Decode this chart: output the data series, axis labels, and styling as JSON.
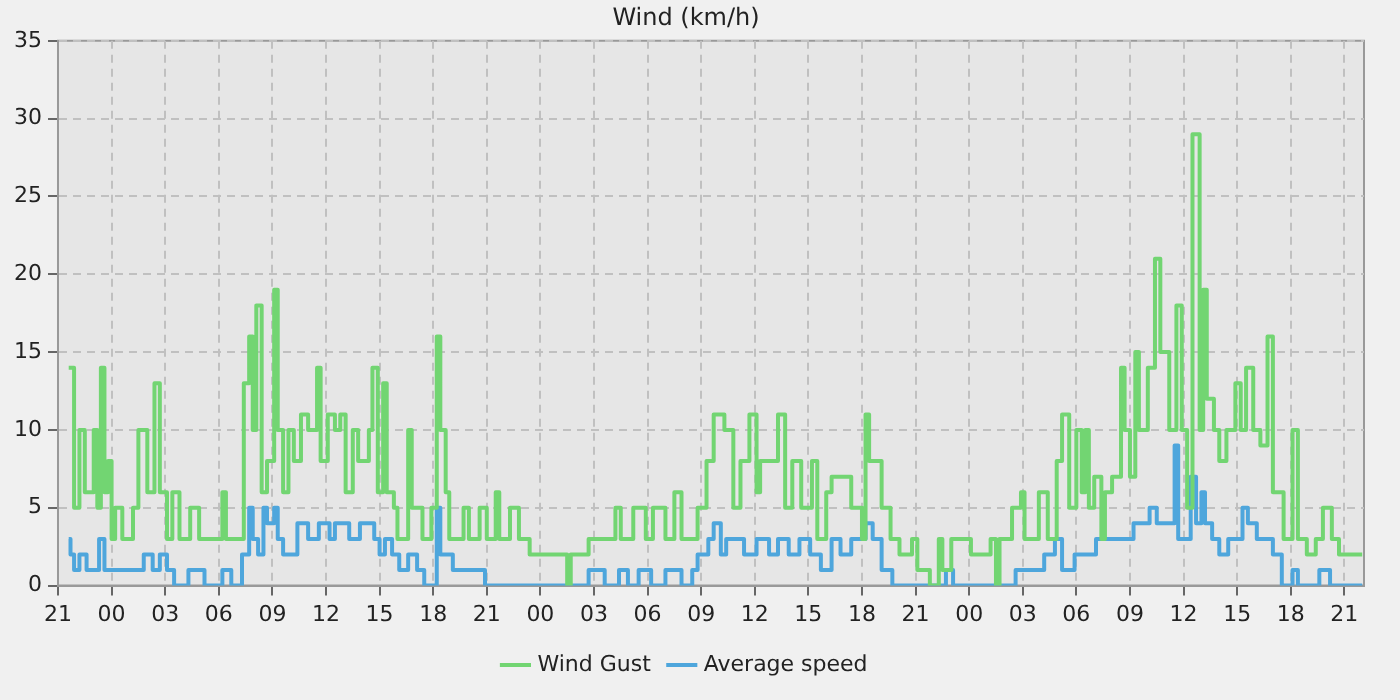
{
  "chart_data": {
    "type": "step",
    "title": "Wind (km/h)",
    "legend": "bottom",
    "grid": true,
    "xlim": [
      "--01-01T21:00",
      "--01-04T22:06"
    ],
    "ylim": [
      0,
      35
    ],
    "yticks": [
      0,
      5,
      10,
      15,
      20,
      25,
      30,
      35
    ],
    "xticks": [
      {
        "value": "--01-01T21:00",
        "label": "21"
      },
      {
        "value": "--01-02T00:00",
        "label": "00"
      },
      {
        "value": "--01-02T03:00",
        "label": "03"
      },
      {
        "value": "--01-02T06:00",
        "label": "06"
      },
      {
        "value": "--01-02T09:00",
        "label": "09"
      },
      {
        "value": "--01-02T12:00",
        "label": "12"
      },
      {
        "value": "--01-02T15:00",
        "label": "15"
      },
      {
        "value": "--01-02T18:00",
        "label": "18"
      },
      {
        "value": "--01-02T21:00",
        "label": "21"
      },
      {
        "value": "--01-03T00:00",
        "label": "00"
      },
      {
        "value": "--01-03T03:00",
        "label": "03"
      },
      {
        "value": "--01-03T06:00",
        "label": "06"
      },
      {
        "value": "--01-03T09:00",
        "label": "09"
      },
      {
        "value": "--01-03T12:00",
        "label": "12"
      },
      {
        "value": "--01-03T15:00",
        "label": "15"
      },
      {
        "value": "--01-03T18:00",
        "label": "18"
      },
      {
        "value": "--01-03T21:00",
        "label": "21"
      },
      {
        "value": "--01-04T00:00",
        "label": "00"
      },
      {
        "value": "--01-04T03:00",
        "label": "03"
      },
      {
        "value": "--01-04T06:00",
        "label": "06"
      },
      {
        "value": "--01-04T09:00",
        "label": "09"
      },
      {
        "value": "--01-04T12:00",
        "label": "12"
      },
      {
        "value": "--01-04T15:00",
        "label": "15"
      },
      {
        "value": "--01-04T18:00",
        "label": "18"
      },
      {
        "value": "--01-04T21:00",
        "label": "21"
      }
    ],
    "series": [
      {
        "name": "Wind Gust",
        "color": "#72d572",
        "x": [
          "--01-01T21:36",
          "--01-01T21:54",
          "--01-01T22:12",
          "--01-01T22:30",
          "--01-01T23:00",
          "--01-01T23:12",
          "--01-01T23:24",
          "--01-01T23:36",
          "--01-01T23:48",
          "--01-02T00:00",
          "--01-02T00:12",
          "--01-02T00:36",
          "--01-02T01:12",
          "--01-02T01:30",
          "--01-02T02:00",
          "--01-02T02:24",
          "--01-02T02:42",
          "--01-02T03:06",
          "--01-02T03:24",
          "--01-02T03:48",
          "--01-02T04:24",
          "--01-02T04:54",
          "--01-02T06:12",
          "--01-02T06:24",
          "--01-02T07:24",
          "--01-02T07:42",
          "--01-02T07:54",
          "--01-02T08:06",
          "--01-02T08:24",
          "--01-02T08:42",
          "--01-02T09:06",
          "--01-02T09:18",
          "--01-02T09:36",
          "--01-02T09:54",
          "--01-02T10:12",
          "--01-02T10:36",
          "--01-02T11:00",
          "--01-02T11:30",
          "--01-02T11:42",
          "--01-02T12:06",
          "--01-02T12:30",
          "--01-02T12:48",
          "--01-02T13:06",
          "--01-02T13:30",
          "--01-02T13:48",
          "--01-02T14:24",
          "--01-02T14:36",
          "--01-02T14:54",
          "--01-02T15:12",
          "--01-02T15:24",
          "--01-02T15:48",
          "--01-02T16:00",
          "--01-02T16:36",
          "--01-02T16:48",
          "--01-02T17:24",
          "--01-02T17:54",
          "--01-02T18:12",
          "--01-02T18:24",
          "--01-02T18:42",
          "--01-02T18:54",
          "--01-02T19:42",
          "--01-02T20:00",
          "--01-02T20:36",
          "--01-02T21:00",
          "--01-02T21:30",
          "--01-02T21:42",
          "--01-02T22:18",
          "--01-02T22:48",
          "--01-02T23:24",
          "--01-03T01:30",
          "--01-03T01:42",
          "--01-03T02:42",
          "--01-03T04:12",
          "--01-03T04:30",
          "--01-03T05:12",
          "--01-03T05:54",
          "--01-03T06:18",
          "--01-03T07:00",
          "--01-03T07:30",
          "--01-03T07:54",
          "--01-03T08:48",
          "--01-03T09:18",
          "--01-03T09:42",
          "--01-03T10:18",
          "--01-03T10:48",
          "--01-03T11:12",
          "--01-03T11:42",
          "--01-03T12:06",
          "--01-03T12:18",
          "--01-03T13:18",
          "--01-03T13:42",
          "--01-03T14:06",
          "--01-03T14:36",
          "--01-03T15:12",
          "--01-03T15:30",
          "--01-03T16:00",
          "--01-03T16:18",
          "--01-03T17:24",
          "--01-03T18:00",
          "--01-03T18:12",
          "--01-03T18:24",
          "--01-03T19:06",
          "--01-03T19:36",
          "--01-03T20:06",
          "--01-03T20:48",
          "--01-03T21:06",
          "--01-03T21:48",
          "--01-03T22:18",
          "--01-03T22:30",
          "--01-03T23:00",
          "--01-04T00:06",
          "--01-04T01:12",
          "--01-04T01:30",
          "--01-04T01:42",
          "--01-04T02:24",
          "--01-04T02:54",
          "--01-04T03:06",
          "--01-04T03:54",
          "--01-04T04:24",
          "--01-04T04:54",
          "--01-04T05:12",
          "--01-04T05:36",
          "--01-04T06:00",
          "--01-04T06:18",
          "--01-04T06:30",
          "--01-04T06:42",
          "--01-04T07:00",
          "--01-04T07:24",
          "--01-04T07:36",
          "--01-04T08:00",
          "--01-04T08:30",
          "--01-04T08:42",
          "--01-04T09:00",
          "--01-04T09:18",
          "--01-04T09:30",
          "--01-04T10:00",
          "--01-04T10:24",
          "--01-04T10:42",
          "--01-04T11:12",
          "--01-04T11:36",
          "--01-04T11:54",
          "--01-04T12:12",
          "--01-04T12:30",
          "--01-04T12:54",
          "--01-04T13:06",
          "--01-04T13:18",
          "--01-04T13:42",
          "--01-04T14:00",
          "--01-04T14:24",
          "--01-04T14:54",
          "--01-04T15:12",
          "--01-04T15:30",
          "--01-04T15:54",
          "--01-04T16:18",
          "--01-04T16:42",
          "--01-04T17:00",
          "--01-04T17:36",
          "--01-04T18:06",
          "--01-04T18:24",
          "--01-04T18:54",
          "--01-04T19:24",
          "--01-04T19:48",
          "--01-04T20:18",
          "--01-04T20:42",
          "--01-04T22:00"
        ],
        "values": [
          14,
          5,
          10,
          6,
          10,
          5,
          14,
          6,
          8,
          3,
          5,
          3,
          5,
          10,
          6,
          13,
          6,
          3,
          6,
          3,
          5,
          3,
          6,
          3,
          13,
          16,
          10,
          18,
          6,
          8,
          19,
          10,
          6,
          10,
          8,
          11,
          10,
          14,
          8,
          11,
          10,
          11,
          6,
          10,
          8,
          10,
          14,
          6,
          13,
          6,
          5,
          3,
          10,
          5,
          3,
          5,
          16,
          10,
          6,
          3,
          5,
          3,
          5,
          3,
          6,
          3,
          5,
          3,
          2,
          0,
          2,
          3,
          5,
          3,
          5,
          3,
          5,
          3,
          6,
          3,
          5,
          8,
          11,
          10,
          5,
          8,
          11,
          6,
          8,
          11,
          5,
          8,
          5,
          8,
          3,
          6,
          7,
          5,
          3,
          11,
          8,
          5,
          3,
          2,
          3,
          1,
          0,
          3,
          1,
          3,
          2,
          3,
          0,
          3,
          5,
          6,
          3,
          6,
          3,
          8,
          11,
          5,
          10,
          6,
          10,
          5,
          7,
          3,
          6,
          7,
          14,
          10,
          7,
          15,
          10,
          14,
          21,
          15,
          10,
          18,
          10,
          5,
          29,
          10,
          19,
          12,
          10,
          8,
          10,
          13,
          10,
          14,
          10,
          9,
          16,
          6,
          3,
          10,
          3,
          2,
          3,
          5,
          3,
          2,
          2
        ]
      },
      {
        "name": "Average speed",
        "color": "#4ea6dc",
        "x": [
          "--01-01T21:36",
          "--01-01T21:42",
          "--01-01T21:54",
          "--01-01T22:12",
          "--01-01T22:36",
          "--01-01T23:18",
          "--01-01T23:36",
          "--01-02T01:48",
          "--01-02T02:18",
          "--01-02T02:42",
          "--01-02T03:06",
          "--01-02T03:30",
          "--01-02T04:18",
          "--01-02T05:12",
          "--01-02T06:12",
          "--01-02T06:42",
          "--01-02T07:18",
          "--01-02T07:42",
          "--01-02T07:54",
          "--01-02T08:12",
          "--01-02T08:30",
          "--01-02T08:42",
          "--01-02T09:06",
          "--01-02T09:18",
          "--01-02T09:36",
          "--01-02T10:24",
          "--01-02T11:00",
          "--01-02T11:36",
          "--01-02T12:12",
          "--01-02T12:30",
          "--01-02T13:18",
          "--01-02T13:54",
          "--01-02T14:42",
          "--01-02T15:00",
          "--01-02T15:18",
          "--01-02T15:42",
          "--01-02T16:06",
          "--01-02T16:36",
          "--01-02T17:06",
          "--01-02T17:30",
          "--01-02T18:12",
          "--01-02T18:24",
          "--01-02T19:06",
          "--01-02T20:54",
          "--01-03T02:42",
          "--01-03T03:36",
          "--01-03T04:24",
          "--01-03T04:54",
          "--01-03T05:30",
          "--01-03T06:12",
          "--01-03T07:00",
          "--01-03T07:54",
          "--01-03T08:30",
          "--01-03T08:48",
          "--01-03T09:24",
          "--01-03T09:42",
          "--01-03T10:06",
          "--01-03T10:24",
          "--01-03T11:24",
          "--01-03T12:06",
          "--01-03T12:48",
          "--01-03T13:18",
          "--01-03T13:54",
          "--01-03T14:30",
          "--01-03T15:06",
          "--01-03T15:42",
          "--01-03T16:18",
          "--01-03T16:48",
          "--01-03T17:24",
          "--01-03T18:12",
          "--01-03T18:36",
          "--01-03T19:06",
          "--01-03T19:42",
          "--01-03T22:42",
          "--01-03T23:06",
          "--01-04T02:36",
          "--01-04T04:12",
          "--01-04T04:48",
          "--01-04T05:12",
          "--01-04T05:54",
          "--01-04T07:06",
          "--01-04T09:12",
          "--01-04T10:06",
          "--01-04T10:30",
          "--01-04T11:30",
          "--01-04T11:42",
          "--01-04T12:24",
          "--01-04T12:42",
          "--01-04T13:00",
          "--01-04T13:12",
          "--01-04T13:36",
          "--01-04T14:00",
          "--01-04T14:30",
          "--01-04T15:18",
          "--01-04T15:36",
          "--01-04T16:06",
          "--01-04T17:00",
          "--01-04T17:30",
          "--01-04T18:06",
          "--01-04T18:24",
          "--01-04T19:36",
          "--01-04T20:12",
          "--01-04T22:00"
        ],
        "values": [
          3,
          2,
          1,
          2,
          1,
          3,
          1,
          2,
          1,
          2,
          1,
          0,
          1,
          0,
          1,
          0,
          2,
          5,
          3,
          2,
          5,
          4,
          5,
          3,
          2,
          4,
          3,
          4,
          3,
          4,
          3,
          4,
          3,
          2,
          3,
          2,
          1,
          2,
          1,
          0,
          5,
          2,
          1,
          0,
          1,
          0,
          1,
          0,
          1,
          0,
          1,
          0,
          1,
          2,
          3,
          4,
          2,
          3,
          2,
          3,
          2,
          3,
          2,
          3,
          2,
          1,
          3,
          2,
          3,
          4,
          3,
          1,
          0,
          1,
          0,
          1,
          2,
          3,
          1,
          2,
          3,
          4,
          5,
          4,
          9,
          3,
          7,
          4,
          6,
          4,
          3,
          2,
          3,
          5,
          4,
          3,
          2,
          0,
          1,
          0,
          1,
          0,
          0
        ]
      }
    ]
  }
}
